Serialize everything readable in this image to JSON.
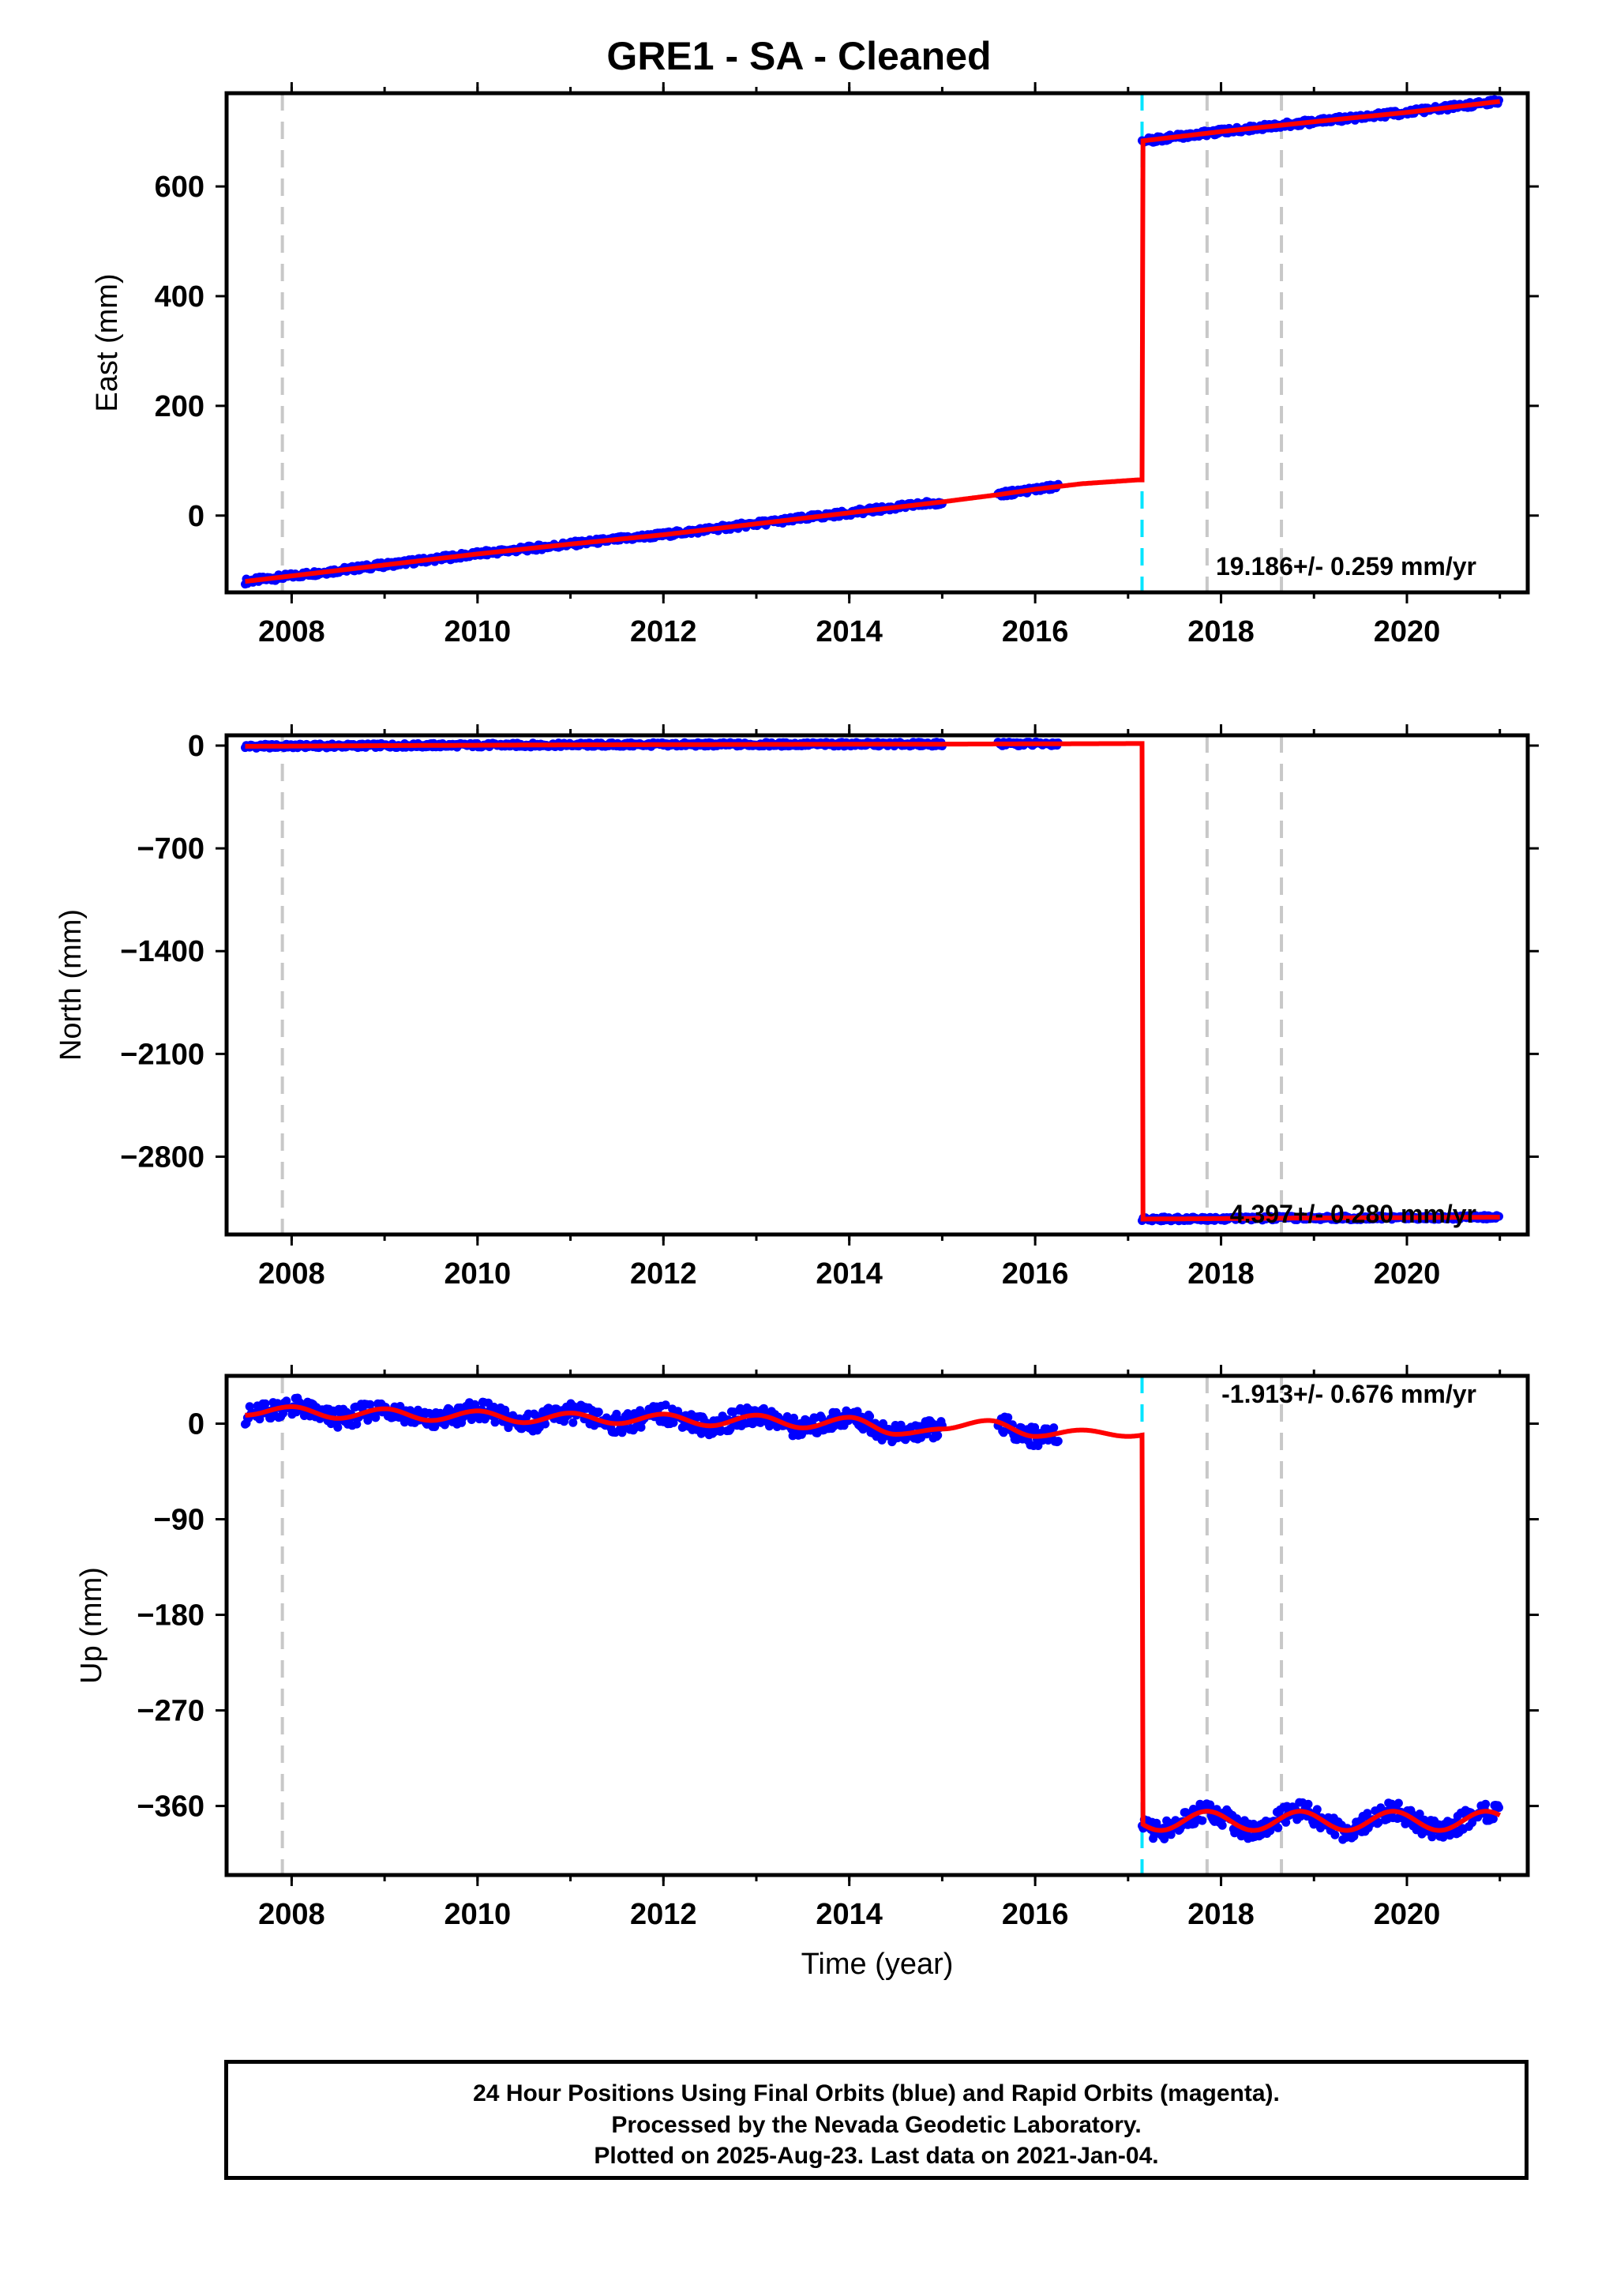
{
  "title": "GRE1  - SA - Cleaned",
  "footer": {
    "line1": "24 Hour Positions Using Final Orbits (blue) and Rapid Orbits (magenta).",
    "line2": "Processed by the Nevada Geodetic Laboratory.",
    "line3": "Plotted on 2025-Aug-23. Last data on 2021-Jan-04."
  },
  "colors": {
    "data": "#0000ff",
    "model": "#ff0000",
    "equipment_change": "#c8c8c8",
    "earthquake": "#00e5ff"
  },
  "chart_data": [
    {
      "type": "scatter",
      "panel": "east",
      "ylabel": "East (mm)",
      "xlabel": "",
      "xlim": [
        2007.3,
        2021.3
      ],
      "ylim": [
        -140,
        770
      ],
      "xticks": [
        2008,
        2010,
        2012,
        2014,
        2016,
        2018,
        2020
      ],
      "yticks": [
        0,
        200,
        400,
        600
      ],
      "grid": false,
      "rate_label": "19.186+/- 0.259 mm/yr",
      "equipment_lines_x": [
        2007.9,
        2017.85,
        2018.65
      ],
      "earthquake_line_x": 2017.15,
      "data_ranges": [
        [
          2007.5,
          2015.0
        ],
        [
          2015.6,
          2016.25
        ],
        [
          2017.15,
          2021.0
        ]
      ],
      "series": [
        {
          "name": "",
          "x": [
            2007.5,
            2008,
            2009,
            2010,
            2011,
            2012,
            2013,
            2014,
            2015,
            2015.6,
            2016,
            2016.5,
            2017.1
          ],
          "y": [
            -120,
            -110,
            -90,
            -70,
            -52,
            -35,
            -15,
            5,
            25,
            38,
            48,
            58,
            65
          ]
        },
        {
          "name": "",
          "x": [
            2017.15,
            2018,
            2019,
            2020,
            2021
          ],
          "y": [
            683,
            700,
            718,
            735,
            755
          ]
        }
      ]
    },
    {
      "type": "scatter",
      "panel": "north",
      "ylabel": "North (mm)",
      "xlabel": "",
      "xlim": [
        2007.3,
        2021.3
      ],
      "ylim": [
        -3330,
        70
      ],
      "xticks": [
        2008,
        2010,
        2012,
        2014,
        2016,
        2018,
        2020
      ],
      "yticks": [
        0,
        -700,
        -1400,
        -2100,
        -2800
      ],
      "grid": false,
      "rate_label": "4.397+/- 0.280 mm/yr",
      "equipment_lines_x": [
        2007.9,
        2017.85,
        2018.65
      ],
      "earthquake_line_x": null,
      "data_ranges": [
        [
          2007.5,
          2015.0
        ],
        [
          2015.6,
          2016.25
        ],
        [
          2017.15,
          2021.0
        ]
      ],
      "series": [
        {
          "name": "",
          "x": [
            2007.5,
            2009,
            2011,
            2013,
            2015,
            2016,
            2017.1
          ],
          "y": [
            -5,
            0,
            5,
            8,
            10,
            12,
            14
          ]
        },
        {
          "name": "",
          "x": [
            2017.15,
            2019,
            2021
          ],
          "y": [
            -3225,
            -3218,
            -3212
          ]
        }
      ]
    },
    {
      "type": "scatter",
      "panel": "up",
      "ylabel": "Up (mm)",
      "xlabel": "Time (year)",
      "xlim": [
        2007.3,
        2021.3
      ],
      "ylim": [
        -425,
        45
      ],
      "xticks": [
        2008,
        2010,
        2012,
        2014,
        2016,
        2018,
        2020
      ],
      "yticks": [
        0,
        -90,
        -180,
        -270,
        -360
      ],
      "grid": false,
      "rate_label": "-1.913+/- 0.676 mm/yr",
      "equipment_lines_x": [
        2007.9,
        2017.85,
        2018.65
      ],
      "earthquake_line_x": 2017.15,
      "data_ranges": [
        [
          2007.5,
          2015.0
        ],
        [
          2015.6,
          2016.25
        ],
        [
          2017.15,
          2021.0
        ]
      ],
      "series": [
        {
          "name": "",
          "model": "seasonal",
          "offset_pre": 3,
          "offset_post": -368,
          "trend_mm_per_yr": -1.913,
          "amplitude": 9,
          "x_start": 2007.5,
          "x_step": 0.5,
          "y": [
            8,
            16,
            5,
            14,
            3,
            12,
            1,
            10,
            0,
            9,
            -2,
            8,
            -4,
            6,
            -10,
            -5,
            3,
            -12,
            -6
          ]
        }
      ]
    }
  ]
}
